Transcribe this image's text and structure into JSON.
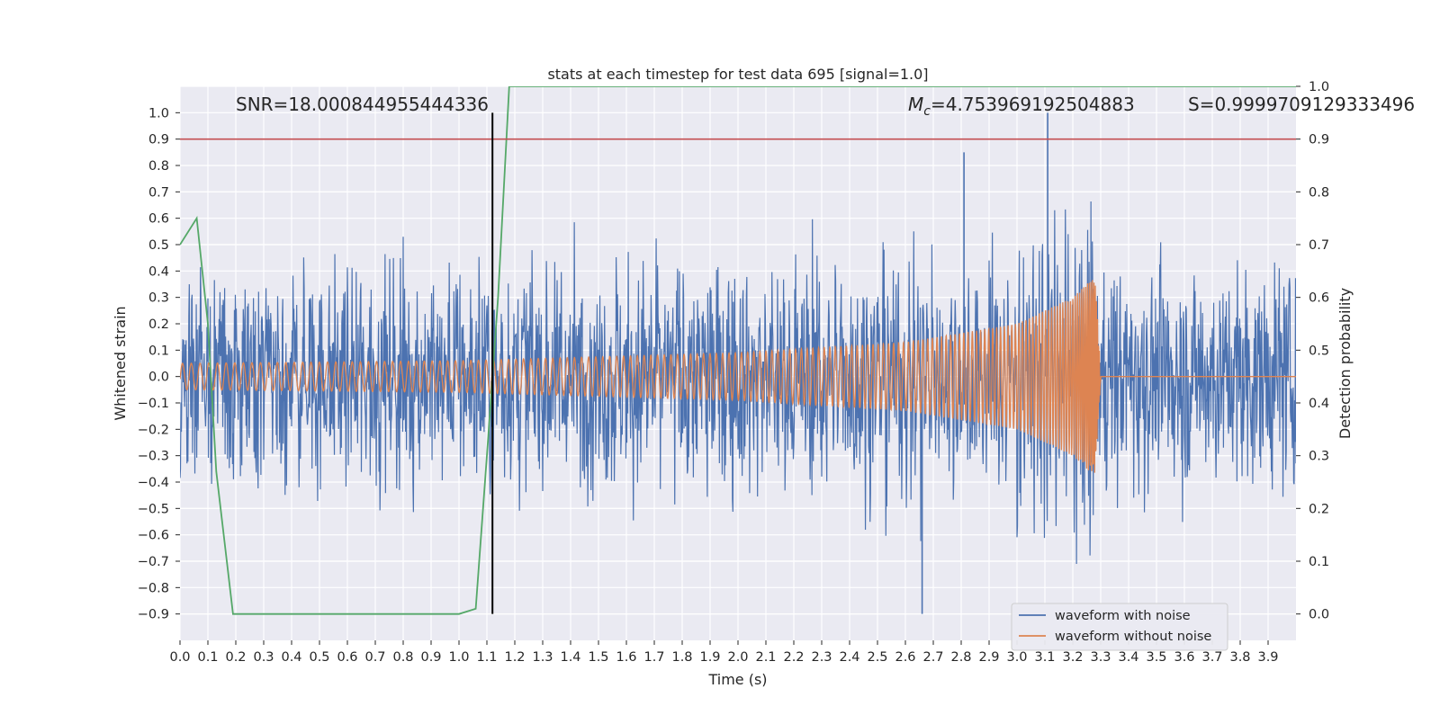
{
  "chart_data": {
    "type": "line",
    "title": "stats at each timestep for test data 695 [signal=1.0]",
    "xlabel": "Time (s)",
    "ylabel_left": "Whitened strain",
    "ylabel_right": "Detection probability",
    "xlim": [
      0.0,
      4.0
    ],
    "ylim_left": [
      -1.0,
      1.1
    ],
    "ylim_right": [
      -0.05,
      1.0
    ],
    "x_ticks": [
      "0.0",
      "0.1",
      "0.2",
      "0.3",
      "0.4",
      "0.5",
      "0.6",
      "0.7",
      "0.8",
      "0.9",
      "1.0",
      "1.1",
      "1.2",
      "1.3",
      "1.4",
      "1.5",
      "1.6",
      "1.7",
      "1.8",
      "1.9",
      "2.0",
      "2.1",
      "2.2",
      "2.3",
      "2.4",
      "2.5",
      "2.6",
      "2.7",
      "2.8",
      "2.9",
      "3.0",
      "3.1",
      "3.2",
      "3.3",
      "3.4",
      "3.5",
      "3.6",
      "3.7",
      "3.8",
      "3.9"
    ],
    "y_ticks_left": [
      "−0.9",
      "−0.8",
      "−0.7",
      "−0.6",
      "−0.5",
      "−0.4",
      "−0.3",
      "−0.2",
      "−0.1",
      "0.0",
      "0.1",
      "0.2",
      "0.3",
      "0.4",
      "0.5",
      "0.6",
      "0.7",
      "0.8",
      "0.9",
      "1.0"
    ],
    "y_ticks_right": [
      "0.0",
      "0.1",
      "0.2",
      "0.3",
      "0.4",
      "0.5",
      "0.6",
      "0.7",
      "0.8",
      "0.9",
      "1.0"
    ],
    "grid": true,
    "legend_placement": "lower-right",
    "annotations": {
      "snr": "SNR=18.000844955444336",
      "mc_symbol": "M",
      "mc_sub": "c",
      "mc_value": "=4.753969192504883",
      "s": "S=0.9999709129333496"
    },
    "series": [
      {
        "name": "waveform with noise",
        "axis": "left",
        "color": "#4c72b0",
        "description_values": {
          "amplitude_range": [
            -0.9,
            1.0
          ],
          "notable_peaks": [
            {
              "x": 3.11,
              "y": 1.0
            },
            {
              "x": 2.81,
              "y": 0.85
            },
            {
              "x": 2.66,
              "y": -0.9
            }
          ]
        }
      },
      {
        "name": "waveform without noise",
        "axis": "left",
        "color": "#dd8452",
        "envelope": [
          [
            0.0,
            0.05
          ],
          [
            1.0,
            0.06
          ],
          [
            2.0,
            0.09
          ],
          [
            2.6,
            0.13
          ],
          [
            3.0,
            0.2
          ],
          [
            3.2,
            0.3
          ],
          [
            3.28,
            0.38
          ],
          [
            3.3,
            0.02
          ],
          [
            4.0,
            0.0
          ]
        ],
        "chirp_end": 3.3
      },
      {
        "name": "",
        "axis": "right",
        "color": "#55a868",
        "x": [
          0.0,
          0.06,
          0.1,
          0.13,
          0.19,
          0.25,
          1.0,
          1.06,
          1.1,
          1.14,
          1.18,
          4.0
        ],
        "values": [
          0.7,
          0.75,
          0.55,
          0.27,
          0.0,
          0.0,
          0.0,
          0.01,
          0.3,
          0.6,
          1.0,
          1.0
        ]
      }
    ],
    "threshold_line": {
      "axis": "right",
      "value": 0.9,
      "color": "#c44e52"
    },
    "vertical_marker": {
      "x": 1.12,
      "y_range": [
        -0.9,
        1.0
      ],
      "color": "#000000"
    }
  }
}
